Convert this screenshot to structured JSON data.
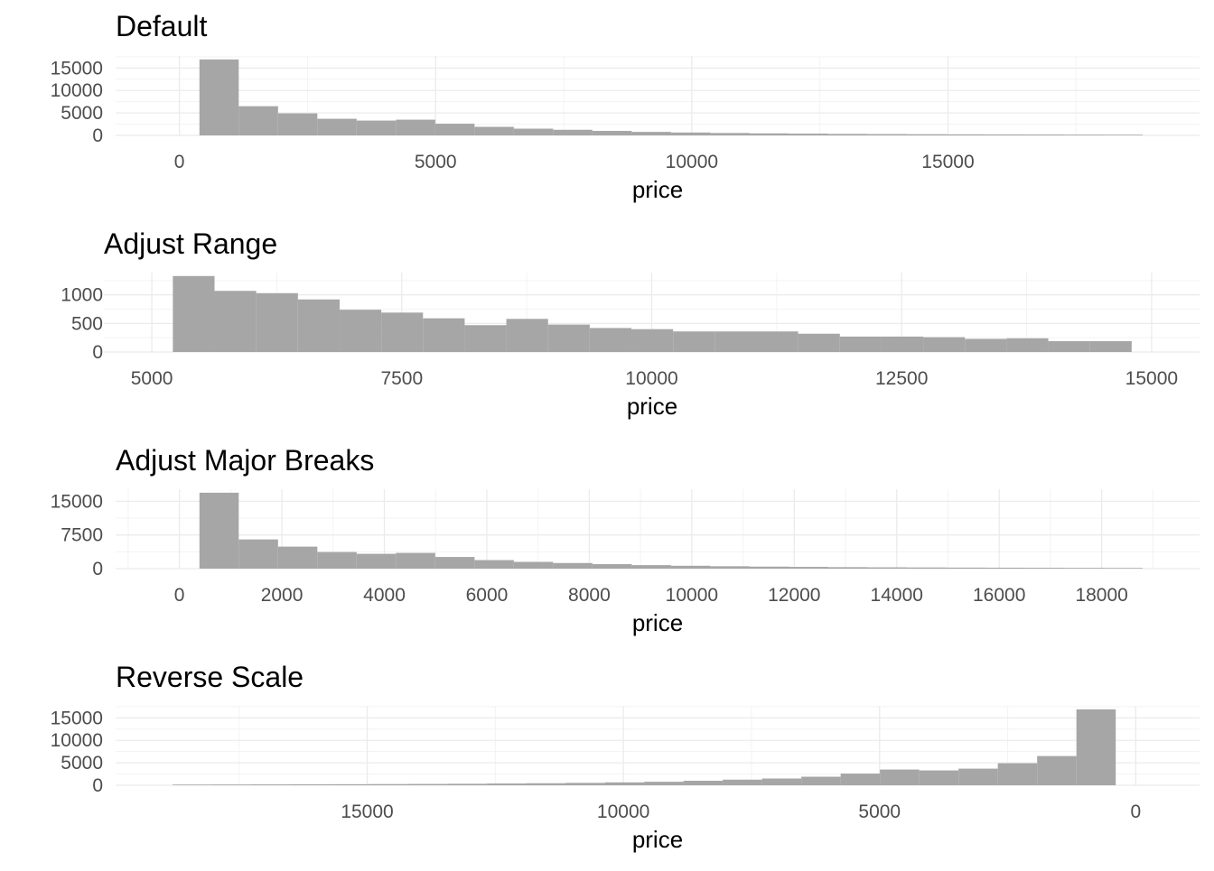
{
  "colors": {
    "bar": "#a6a6a6",
    "grid_major": "#ebebeb",
    "grid_minor": "#f3f3f3",
    "tick_text": "#4d4d4d",
    "title_text": "#000000"
  },
  "chart_data": [
    {
      "type": "bar",
      "title": "Default",
      "xlabel": "price",
      "ylabel": "",
      "xlim": [
        -1245,
        19910
      ],
      "ylim": [
        0,
        17680
      ],
      "x_ticks": [
        0,
        5000,
        10000,
        15000
      ],
      "x_tick_labels": [
        "0",
        "5000",
        "10000",
        "15000"
      ],
      "y_ticks": [
        0,
        5000,
        10000,
        15000
      ],
      "y_tick_labels": [
        "0",
        "5000",
        "10000",
        "15000"
      ],
      "bin_width": 767,
      "bin_starts": [
        391,
        1158,
        1925,
        2692,
        3459,
        4226,
        4993,
        5760,
        6527,
        7294,
        8061,
        8828,
        9595,
        10362,
        11129,
        11896,
        12663,
        13430,
        14197,
        14964,
        15731,
        16498,
        17265,
        18032
      ],
      "values": [
        16900,
        6500,
        4900,
        3700,
        3300,
        3500,
        2600,
        1900,
        1500,
        1250,
        1000,
        780,
        640,
        530,
        450,
        390,
        330,
        290,
        260,
        230,
        210,
        190,
        170,
        150
      ],
      "grid": true
    },
    {
      "type": "bar",
      "title": "Adjust Range",
      "xlabel": "price",
      "ylabel": "",
      "xlim": [
        4520,
        15480
      ],
      "ylim": [
        0,
        1390
      ],
      "x_ticks": [
        5000,
        7500,
        10000,
        12500,
        15000
      ],
      "x_tick_labels": [
        "5000",
        "7500",
        "10000",
        "12500",
        "15000"
      ],
      "y_ticks": [
        0,
        500,
        1000
      ],
      "y_tick_labels": [
        "0",
        "500",
        "1000"
      ],
      "bin_width": 417,
      "bin_starts": [
        5210,
        5627,
        6044,
        6461,
        6878,
        7295,
        7712,
        8129,
        8546,
        8963,
        9380,
        9797,
        10214,
        10631,
        11048,
        11465,
        11882,
        12299,
        12716,
        13133,
        13550,
        13967,
        14384
      ],
      "values": [
        1330,
        1070,
        1030,
        920,
        740,
        690,
        590,
        470,
        580,
        480,
        420,
        400,
        360,
        360,
        360,
        320,
        270,
        270,
        260,
        230,
        240,
        190,
        190
      ],
      "grid": true
    },
    {
      "type": "bar",
      "title": "Adjust Major Breaks",
      "xlabel": "price",
      "ylabel": "",
      "xlim": [
        -1245,
        19910
      ],
      "ylim": [
        0,
        17680
      ],
      "x_ticks": [
        0,
        2000,
        4000,
        6000,
        8000,
        10000,
        12000,
        14000,
        16000,
        18000
      ],
      "x_tick_labels": [
        "0",
        "2000",
        "4000",
        "6000",
        "8000",
        "10000",
        "12000",
        "14000",
        "16000",
        "18000"
      ],
      "y_ticks": [
        0,
        7500,
        15000
      ],
      "y_tick_labels": [
        "0",
        "7500",
        "15000"
      ],
      "bin_width": 767,
      "bin_starts": [
        391,
        1158,
        1925,
        2692,
        3459,
        4226,
        4993,
        5760,
        6527,
        7294,
        8061,
        8828,
        9595,
        10362,
        11129,
        11896,
        12663,
        13430,
        14197,
        14964,
        15731,
        16498,
        17265,
        18032
      ],
      "values": [
        16900,
        6500,
        4900,
        3700,
        3300,
        3500,
        2600,
        1900,
        1500,
        1250,
        1000,
        780,
        640,
        530,
        450,
        390,
        330,
        290,
        260,
        230,
        210,
        190,
        170,
        150
      ],
      "grid": true
    },
    {
      "type": "bar",
      "title": "Reverse Scale",
      "xlabel": "price",
      "ylabel": "",
      "reverse_x": true,
      "xlim": [
        -1245,
        19910
      ],
      "ylim": [
        0,
        17680
      ],
      "x_ticks": [
        0,
        5000,
        10000,
        15000
      ],
      "x_tick_labels": [
        "0",
        "5000",
        "10000",
        "15000"
      ],
      "y_ticks": [
        0,
        5000,
        10000,
        15000
      ],
      "y_tick_labels": [
        "0",
        "5000",
        "10000",
        "15000"
      ],
      "bin_width": 767,
      "bin_starts": [
        391,
        1158,
        1925,
        2692,
        3459,
        4226,
        4993,
        5760,
        6527,
        7294,
        8061,
        8828,
        9595,
        10362,
        11129,
        11896,
        12663,
        13430,
        14197,
        14964,
        15731,
        16498,
        17265,
        18032
      ],
      "values": [
        16900,
        6500,
        4900,
        3700,
        3300,
        3500,
        2600,
        1900,
        1500,
        1250,
        1000,
        780,
        640,
        530,
        450,
        390,
        330,
        290,
        260,
        230,
        210,
        190,
        170,
        150
      ],
      "grid": true
    }
  ]
}
